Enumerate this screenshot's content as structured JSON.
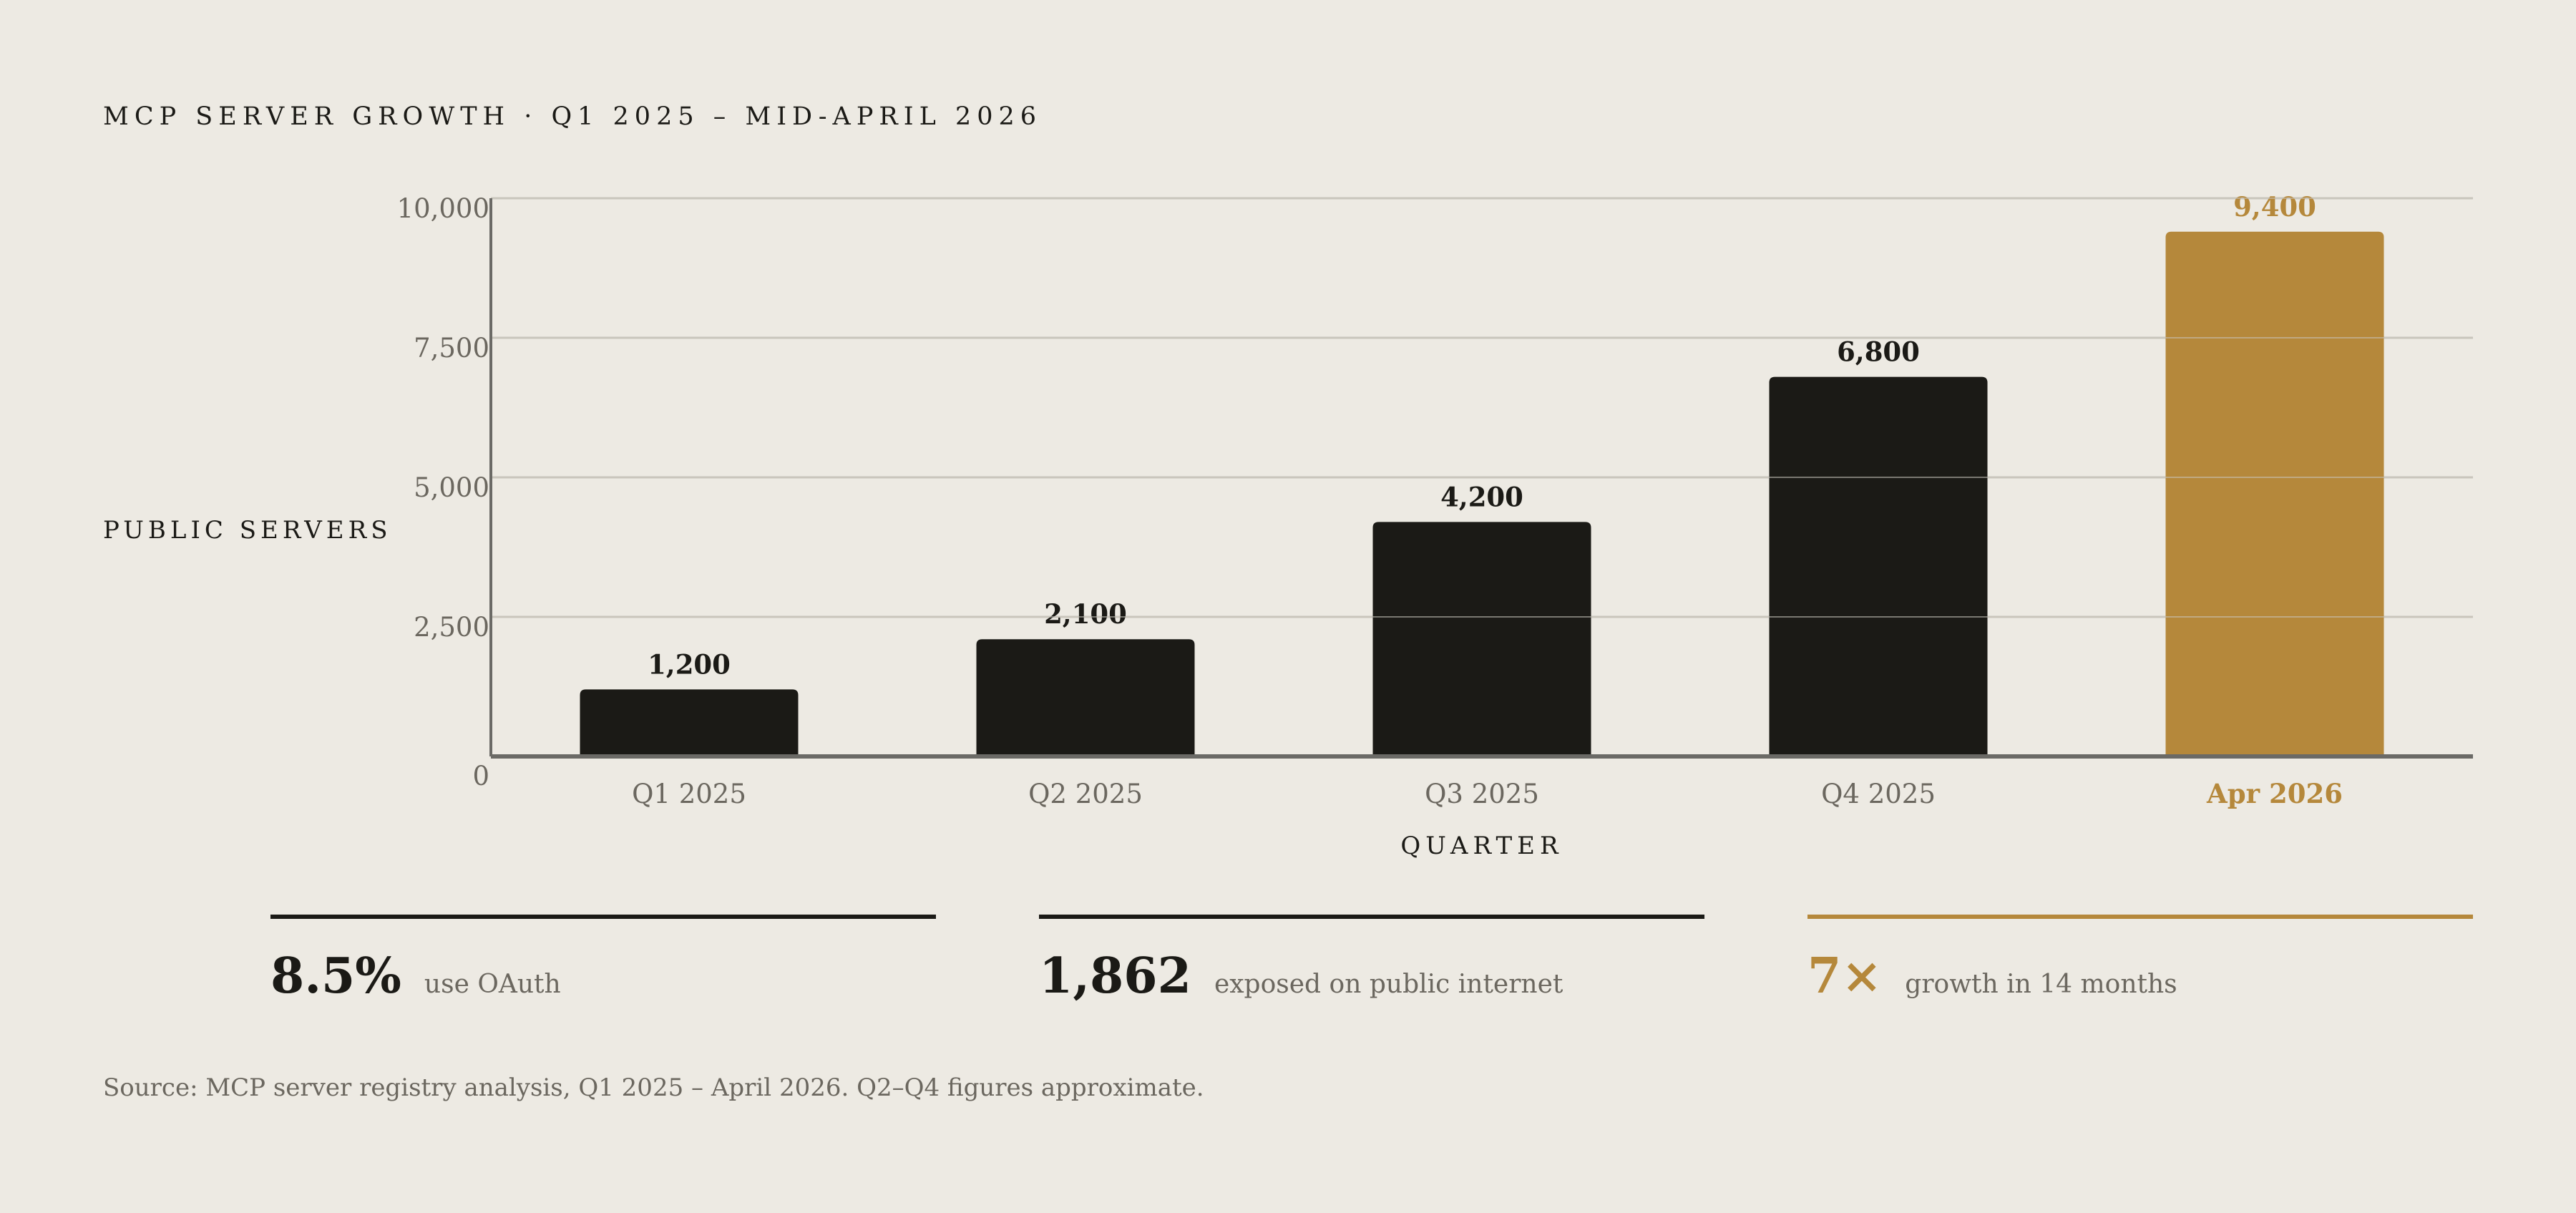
{
  "title": "MCP SERVER GROWTH · Q1 2025 – MID-APRIL 2026",
  "chart_data": {
    "type": "bar",
    "categories": [
      "Q1 2025",
      "Q2 2025",
      "Q3 2025",
      "Q4 2025",
      "Apr 2026"
    ],
    "values": [
      1200,
      2100,
      4200,
      6800,
      9400
    ],
    "value_labels": [
      "1,200",
      "2,100",
      "4,200",
      "6,800",
      "9,400"
    ],
    "highlight_index": 4,
    "xlabel": "QUARTER",
    "ylabel": "PUBLIC SERVERS",
    "ylim": [
      0,
      10000
    ],
    "yticks": [
      0,
      2500,
      5000,
      7500,
      10000
    ],
    "ytick_labels": [
      "0",
      "2,500",
      "5,000",
      "7,500",
      "10,000"
    ],
    "grid": true,
    "colors": {
      "bar": "#1b1a16",
      "highlight": "#b5883b",
      "grid": "#c9c5bc",
      "axis": "#6b6a66",
      "tick_text": "#6b675f"
    }
  },
  "stats": [
    {
      "value": "8.5%",
      "label": "use OAuth",
      "accent": false
    },
    {
      "value": "1,862",
      "label": "exposed on public internet",
      "accent": false
    },
    {
      "value": "7×",
      "label": "growth in 14 months",
      "accent": true
    }
  ],
  "source": "Source: MCP server registry analysis, Q1 2025 – April 2026. Q2–Q4 figures approximate."
}
